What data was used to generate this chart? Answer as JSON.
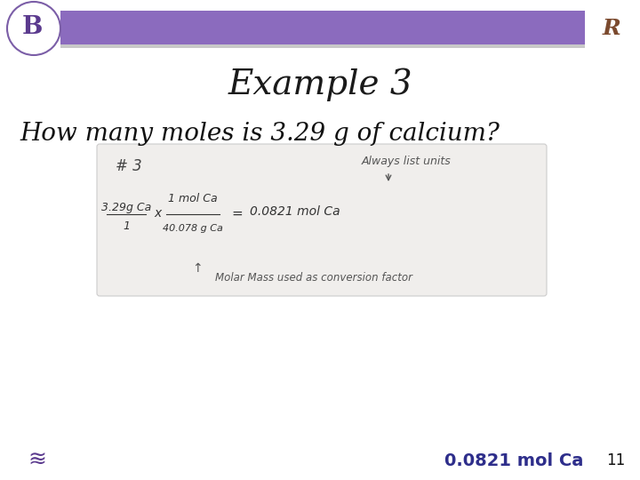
{
  "title": "Example 3",
  "question": "How many moles is 3.29 g of calcium?",
  "answer_text": "0.0821 mol Ca",
  "slide_number": "11",
  "bg_color": "#ffffff",
  "title_color": "#1a1a1a",
  "question_color": "#111111",
  "answer_color": "#2E2E8B",
  "answer_fontsize": 14,
  "slide_num_color": "#111111",
  "header_bar_color": "#8B6BBE",
  "header_bar_border": "#aaaaaa",
  "hw_box_color": "#f0eeec",
  "hw_box_border": "#cccccc",
  "title_fontsize": 28,
  "question_fontsize": 20
}
